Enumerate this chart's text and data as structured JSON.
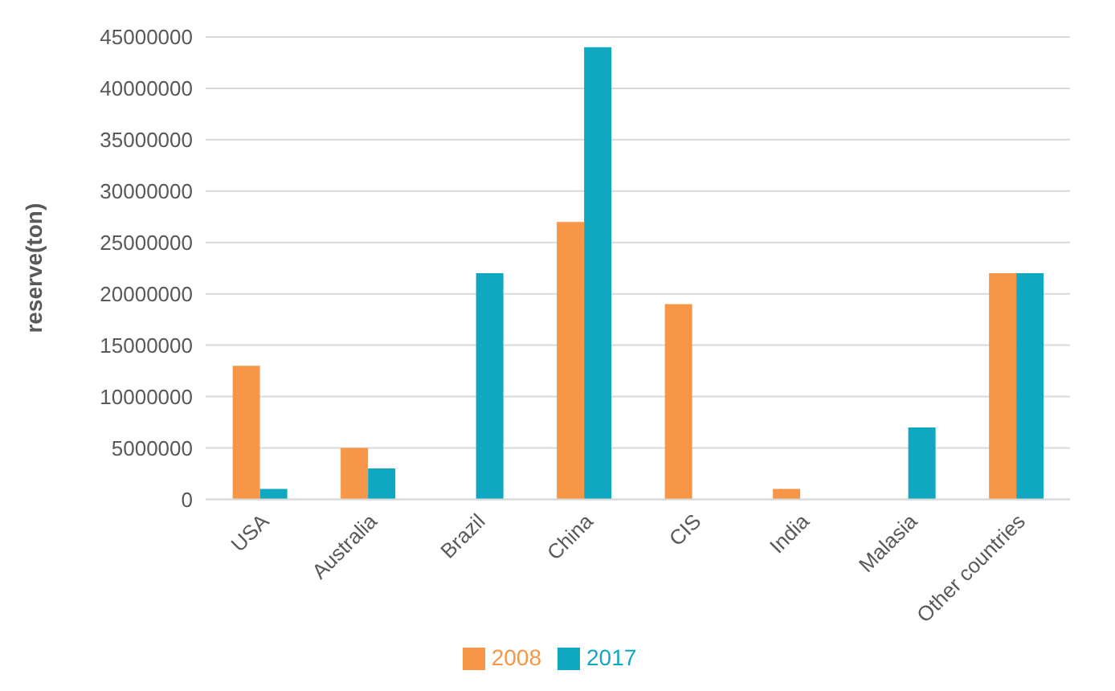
{
  "chart_data": {
    "type": "bar",
    "ylabel": "reserve(ton)",
    "categories": [
      "USA",
      "Australia",
      "Brazil",
      "China",
      "CIS",
      "India",
      "Malasia",
      "Other countries"
    ],
    "series": [
      {
        "name": "2008",
        "color": "#f79646",
        "values": [
          13000000,
          5000000,
          0,
          27000000,
          19000000,
          1000000,
          0,
          22000000
        ]
      },
      {
        "name": "2017",
        "color": "#0fa8c0",
        "values": [
          1000000,
          3000000,
          22000000,
          44000000,
          0,
          0,
          7000000,
          22000000
        ]
      }
    ],
    "ylim": [
      0,
      45000000
    ],
    "yticks": [
      0,
      5000000,
      10000000,
      15000000,
      20000000,
      25000000,
      30000000,
      35000000,
      40000000,
      45000000
    ],
    "grid": "y",
    "legend": "bottom"
  }
}
